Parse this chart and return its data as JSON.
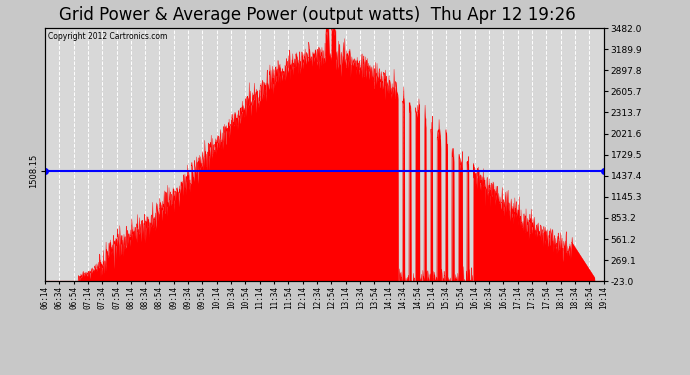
{
  "title": "Grid Power & Average Power (output watts)  Thu Apr 12 19:26",
  "copyright": "Copyright 2012 Cartronics.com",
  "avg_power": 1508.15,
  "ymin": -23.0,
  "ymax": 3482.0,
  "yticks_right": [
    -23.0,
    269.1,
    561.2,
    853.2,
    1145.3,
    1437.4,
    1729.5,
    2021.6,
    2313.7,
    2605.7,
    2897.8,
    3189.9,
    3482.0
  ],
  "ytick_labels_right": [
    "-23.0",
    "269.1",
    "561.2",
    "853.2",
    "1145.3",
    "1437.4",
    "1729.5",
    "2021.6",
    "2313.7",
    "2605.7",
    "2897.8",
    "3189.9",
    "3482.0"
  ],
  "fill_color": "red",
  "line_color": "red",
  "avg_line_color": "blue",
  "bg_color": "#c8c8c8",
  "plot_bg_color": "#d8d8d8",
  "grid_color": "white",
  "title_fontsize": 12,
  "xtick_labels": [
    "06:14",
    "06:34",
    "06:54",
    "07:14",
    "07:34",
    "07:54",
    "08:14",
    "08:34",
    "08:54",
    "09:14",
    "09:34",
    "09:54",
    "10:14",
    "10:34",
    "10:54",
    "11:14",
    "11:34",
    "11:54",
    "12:14",
    "12:34",
    "12:54",
    "13:14",
    "13:34",
    "13:54",
    "14:14",
    "14:34",
    "14:54",
    "15:14",
    "15:34",
    "15:54",
    "16:14",
    "16:34",
    "16:54",
    "17:14",
    "17:34",
    "17:54",
    "18:14",
    "18:34",
    "18:54",
    "19:14"
  ]
}
